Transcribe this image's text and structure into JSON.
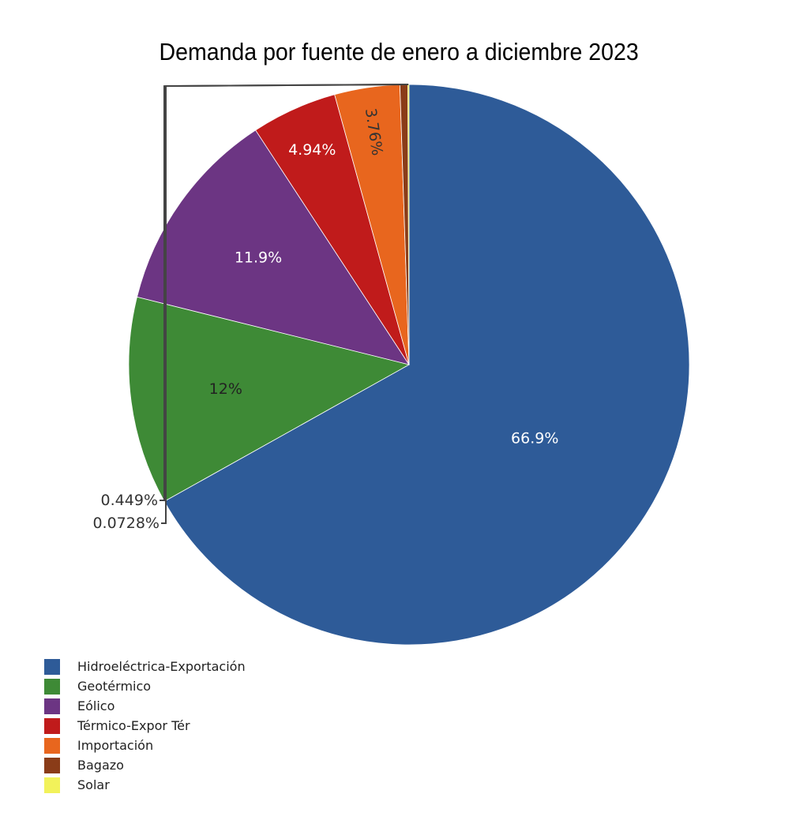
{
  "chart_data": {
    "type": "pie",
    "title": "Demanda por fuente de enero a diciembre 2023",
    "slices": [
      {
        "name": "Hidroeléctrica-Exportación",
        "value": 66.9,
        "label": "66.9%",
        "color": "#2e5b98"
      },
      {
        "name": "Geotérmico",
        "value": 12.0,
        "label": "12%",
        "color": "#3e8a36"
      },
      {
        "name": "Eólico",
        "value": 11.9,
        "label": "11.9%",
        "color": "#6c3583"
      },
      {
        "name": "Térmico-Expor Tér",
        "value": 4.94,
        "label": "4.94%",
        "color": "#c01b1b"
      },
      {
        "name": "Importación",
        "value": 3.76,
        "label": "3.76%",
        "color": "#e8661e"
      },
      {
        "name": "Bagazo",
        "value": 0.449,
        "label": "0.449%",
        "color": "#8a3c18"
      },
      {
        "name": "Solar",
        "value": 0.0728,
        "label": "0.0728%",
        "color": "#f2f25a"
      }
    ],
    "start_angle": "12 o'clock",
    "direction": "clockwise",
    "legend_position": "bottom-left"
  }
}
